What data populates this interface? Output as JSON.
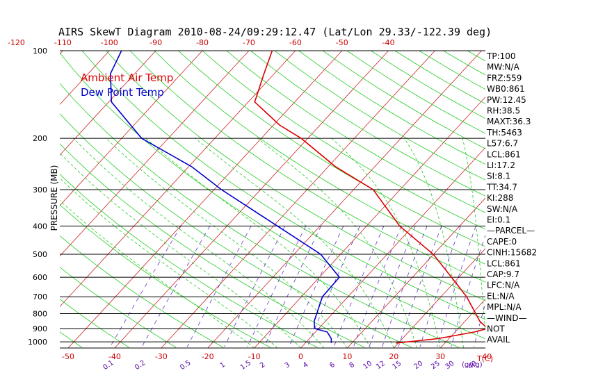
{
  "chart_data": {
    "type": "line",
    "title": "AIRS SkewT Diagram 2010-08-24/09:29:12.47 (Lat/Lon 29.33/-122.39 deg)",
    "ylabel": "PRESSURE (MB)",
    "pressure_ticks": [
      100,
      200,
      300,
      400,
      500,
      600,
      700,
      800,
      900,
      1000
    ],
    "top_temp_ticks": [
      -120,
      -110,
      -100,
      -90,
      -80,
      -70,
      -60,
      -50,
      -40
    ],
    "bottom_temp_ticks": [
      -50,
      -40,
      -30,
      -20,
      -10,
      0,
      10,
      20,
      30,
      40
    ],
    "bottom_temp_unit": "T(C)",
    "mixing_ratio_ticks": [
      "0.1",
      "0.2",
      "0.5",
      "1",
      "1.5",
      "2",
      "3",
      "4",
      "6",
      "8",
      "10",
      "12",
      "15",
      "20",
      "25",
      "30",
      "40"
    ],
    "mixing_ratio_unit": "(g/kg)",
    "legend": [
      {
        "name": "Ambient Air Temp",
        "color": "#dd0000"
      },
      {
        "name": "Dew Point Temp",
        "color": "#0000cc"
      }
    ],
    "series": [
      {
        "name": "Ambient Air Temp",
        "color": "#dd0000",
        "points": [
          {
            "p": 1010,
            "t": 19.5
          },
          {
            "p": 975,
            "t": 27.6
          },
          {
            "p": 925,
            "t": 34.2
          },
          {
            "p": 900,
            "t": 36.3
          },
          {
            "p": 850,
            "t": 33.2
          },
          {
            "p": 700,
            "t": 25.5
          },
          {
            "p": 600,
            "t": 18.4
          },
          {
            "p": 500,
            "t": 9.9
          },
          {
            "p": 400,
            "t": -2.9
          },
          {
            "p": 300,
            "t": -15.8
          },
          {
            "p": 250,
            "t": -28.5
          },
          {
            "p": 200,
            "t": -41.4
          },
          {
            "p": 180,
            "t": -48.7
          },
          {
            "p": 150,
            "t": -58.6
          },
          {
            "p": 120,
            "t": -62.2
          },
          {
            "p": 100,
            "t": -65.0
          }
        ]
      },
      {
        "name": "Dew Point Temp",
        "color": "#0000cc",
        "points": [
          {
            "p": 1010,
            "t": 5.6
          },
          {
            "p": 975,
            "t": 4.7
          },
          {
            "p": 925,
            "t": 2.5
          },
          {
            "p": 900,
            "t": -0.9
          },
          {
            "p": 850,
            "t": -2.4
          },
          {
            "p": 700,
            "t": -5.5
          },
          {
            "p": 600,
            "t": -5.7
          },
          {
            "p": 500,
            "t": -14.3
          },
          {
            "p": 400,
            "t": -29.2
          },
          {
            "p": 300,
            "t": -48.4
          },
          {
            "p": 250,
            "t": -59.4
          },
          {
            "p": 200,
            "t": -75.7
          },
          {
            "p": 150,
            "t": -89.4
          },
          {
            "p": 120,
            "t": -95.2
          },
          {
            "p": 100,
            "t": -97.4
          }
        ]
      }
    ],
    "grid": true
  },
  "indices": [
    "TP:100",
    "MW:N/A",
    "FRZ:559",
    "WB0:861",
    "PW:12.45",
    "RH:38.5",
    "MAXT:36.3",
    "TH:5463",
    "L57:6.7",
    "LCL:861",
    "LI:17.2",
    "SI:8.1",
    "TT:34.7",
    "KI:288",
    "SW:N/A",
    "EI:0.1",
    "—PARCEL—",
    "CAPE:0",
    "CINH:15682",
    "LCL:861",
    "CAP:9.7",
    "LFC:N/A",
    "EL:N/A",
    "MPL:N/A",
    "—WIND—",
    "NOT",
    "AVAIL"
  ]
}
